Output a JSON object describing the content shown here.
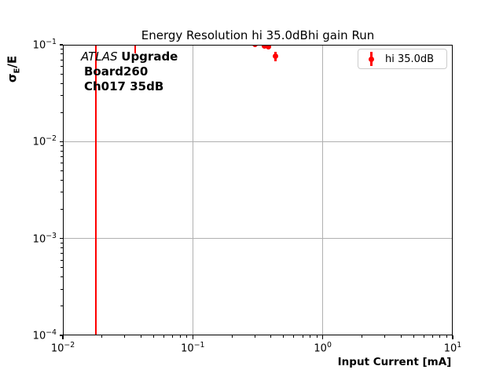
{
  "chart_data": {
    "type": "scatter",
    "title": "Energy Resolution hi 35.0dBhi gain Run",
    "xlabel": "Input Current [mA]",
    "ylabel": "σE/E",
    "ylabel_parts": {
      "base": "σ",
      "sub": "E",
      "rest": "/E"
    },
    "xscale": "log",
    "yscale": "log",
    "xlim": [
      0.01,
      10
    ],
    "ylim": [
      0.0001,
      0.1
    ],
    "x_tick_exponents": [
      -2,
      -1,
      0,
      1
    ],
    "y_tick_exponents": [
      -1,
      -2,
      -3,
      -4
    ],
    "grid": true,
    "legend": {
      "position": "upper right",
      "entries": [
        {
          "label": "hi 35.0dB",
          "color": "#ff0000",
          "marker": "circle-with-errorbar"
        }
      ]
    },
    "annotation": {
      "italic": "ATLAS",
      "bold_suffix": "Upgrade",
      "line2": "Board260",
      "line3": "Ch017 35dB"
    },
    "series": [
      {
        "name": "hi 35.0dB",
        "color": "#ff0000",
        "marker": "circle",
        "points": [
          {
            "x": 0.3,
            "y": 0.1005,
            "yerr": 0.004
          },
          {
            "x": 0.356,
            "y": 0.0973,
            "yerr": 0.004
          },
          {
            "x": 0.382,
            "y": 0.0946,
            "yerr": 0.004
          },
          {
            "x": 0.432,
            "y": 0.0763,
            "yerr": 0.0085
          }
        ],
        "offscale_errorbars": [
          {
            "x": 0.018,
            "y_from": 0.0001,
            "y_to": 0.1,
            "note": "marker above axis top; error bar spans full visible range"
          },
          {
            "x": 0.036,
            "y_from": 0.082,
            "y_to": 0.1,
            "note": "marker above axis top"
          }
        ]
      }
    ],
    "colors": {
      "series": "#ff0000",
      "grid": "#b0b0b0",
      "axes": "#000000",
      "legend_border": "#cccccc",
      "background": "#ffffff"
    }
  }
}
